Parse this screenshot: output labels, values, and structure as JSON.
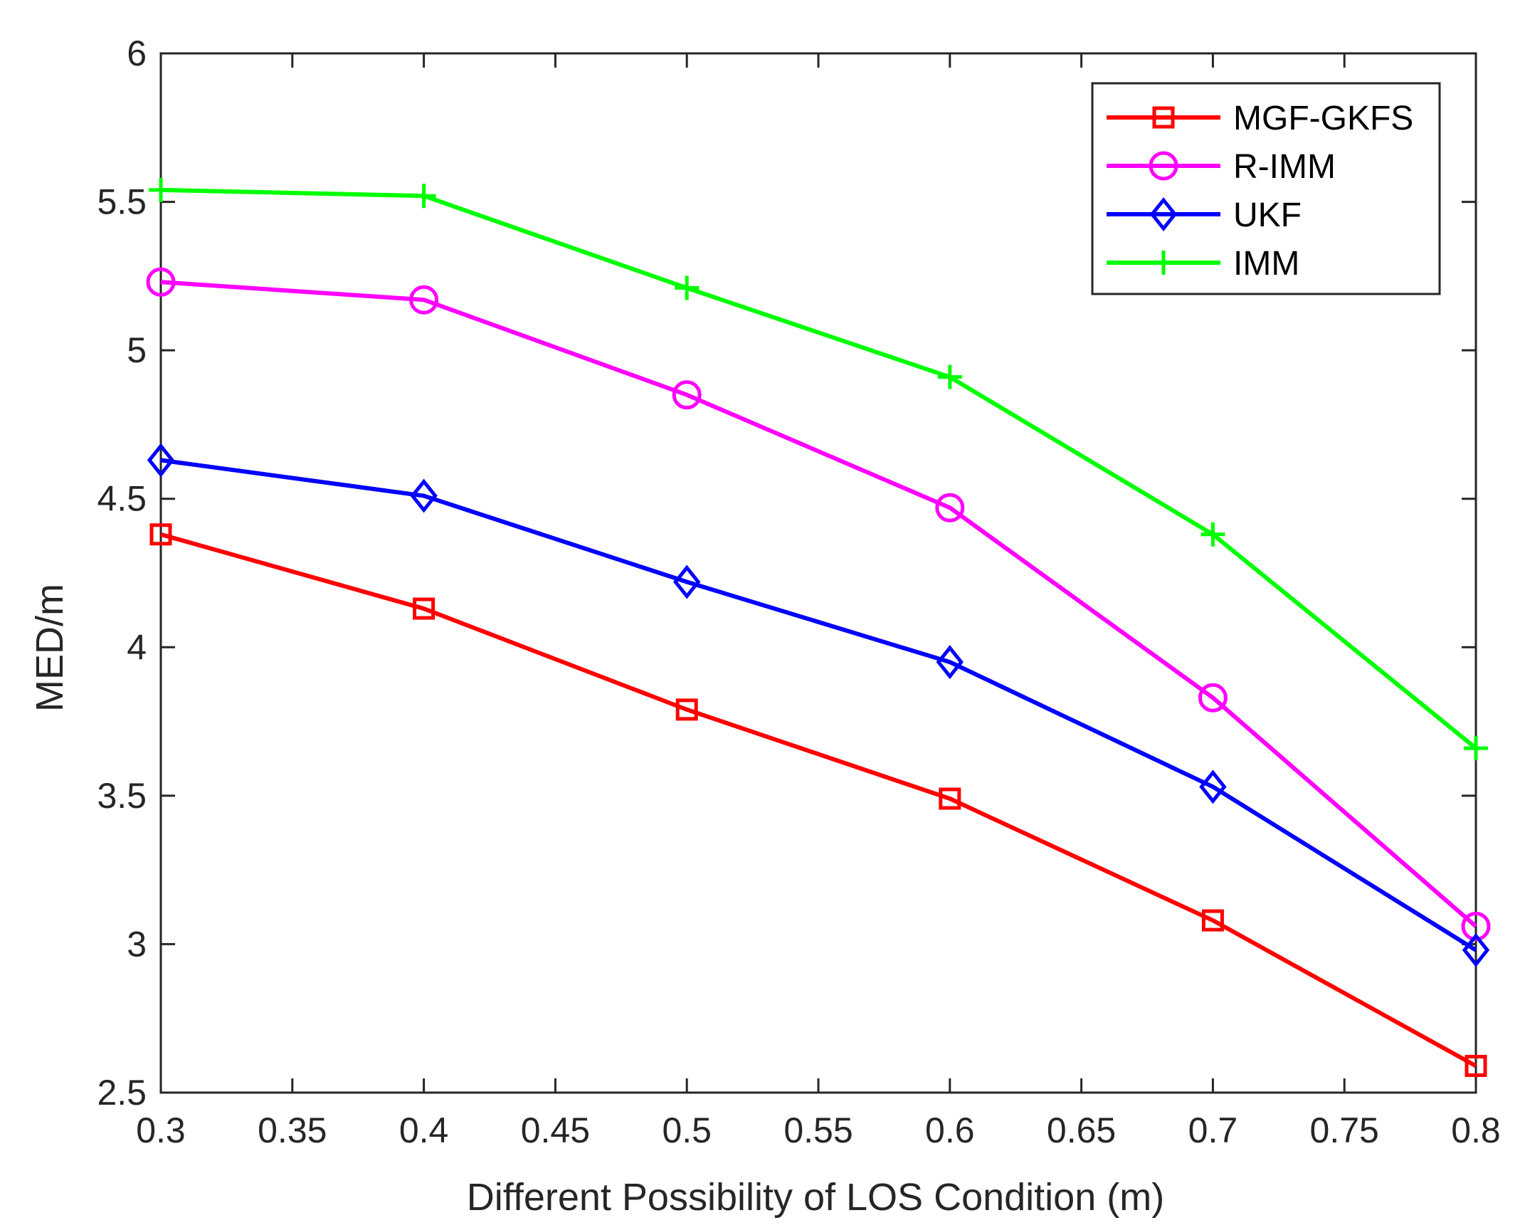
{
  "chart_data": {
    "type": "line",
    "title": "",
    "xlabel": "Different Possibility of LOS Condition (m)",
    "ylabel": "MED/m",
    "xlim": [
      0.3,
      0.8
    ],
    "ylim": [
      2.5,
      6
    ],
    "xticks": [
      0.3,
      0.35,
      0.4,
      0.45,
      0.5,
      0.55,
      0.6,
      0.65,
      0.7,
      0.75,
      0.8
    ],
    "xtick_labels": [
      "0.3",
      "0.35",
      "0.4",
      "0.45",
      "0.5",
      "0.55",
      "0.6",
      "0.65",
      "0.7",
      "0.75",
      "0.8"
    ],
    "yticks": [
      2.5,
      3,
      3.5,
      4,
      4.5,
      5,
      5.5,
      6
    ],
    "ytick_labels": [
      "2.5",
      "3",
      "3.5",
      "4",
      "4.5",
      "5",
      "5.5",
      "6"
    ],
    "grid": false,
    "legend_position": "top-right",
    "x": [
      0.3,
      0.4,
      0.5,
      0.6,
      0.7,
      0.8
    ],
    "series": [
      {
        "name": "MGF-GKFS",
        "color": "#ff0000",
        "marker": "square",
        "values": [
          4.38,
          4.13,
          3.79,
          3.49,
          3.08,
          2.59
        ]
      },
      {
        "name": "R-IMM",
        "color": "#ff00ff",
        "marker": "circle",
        "values": [
          5.23,
          5.17,
          4.85,
          4.47,
          3.83,
          3.06
        ]
      },
      {
        "name": "UKF",
        "color": "#0000ff",
        "marker": "diamond",
        "values": [
          4.63,
          4.51,
          4.22,
          3.95,
          3.53,
          2.98
        ]
      },
      {
        "name": "IMM",
        "color": "#00ff00",
        "marker": "plus",
        "values": [
          5.54,
          5.52,
          5.21,
          4.91,
          4.38,
          3.66
        ]
      }
    ]
  }
}
